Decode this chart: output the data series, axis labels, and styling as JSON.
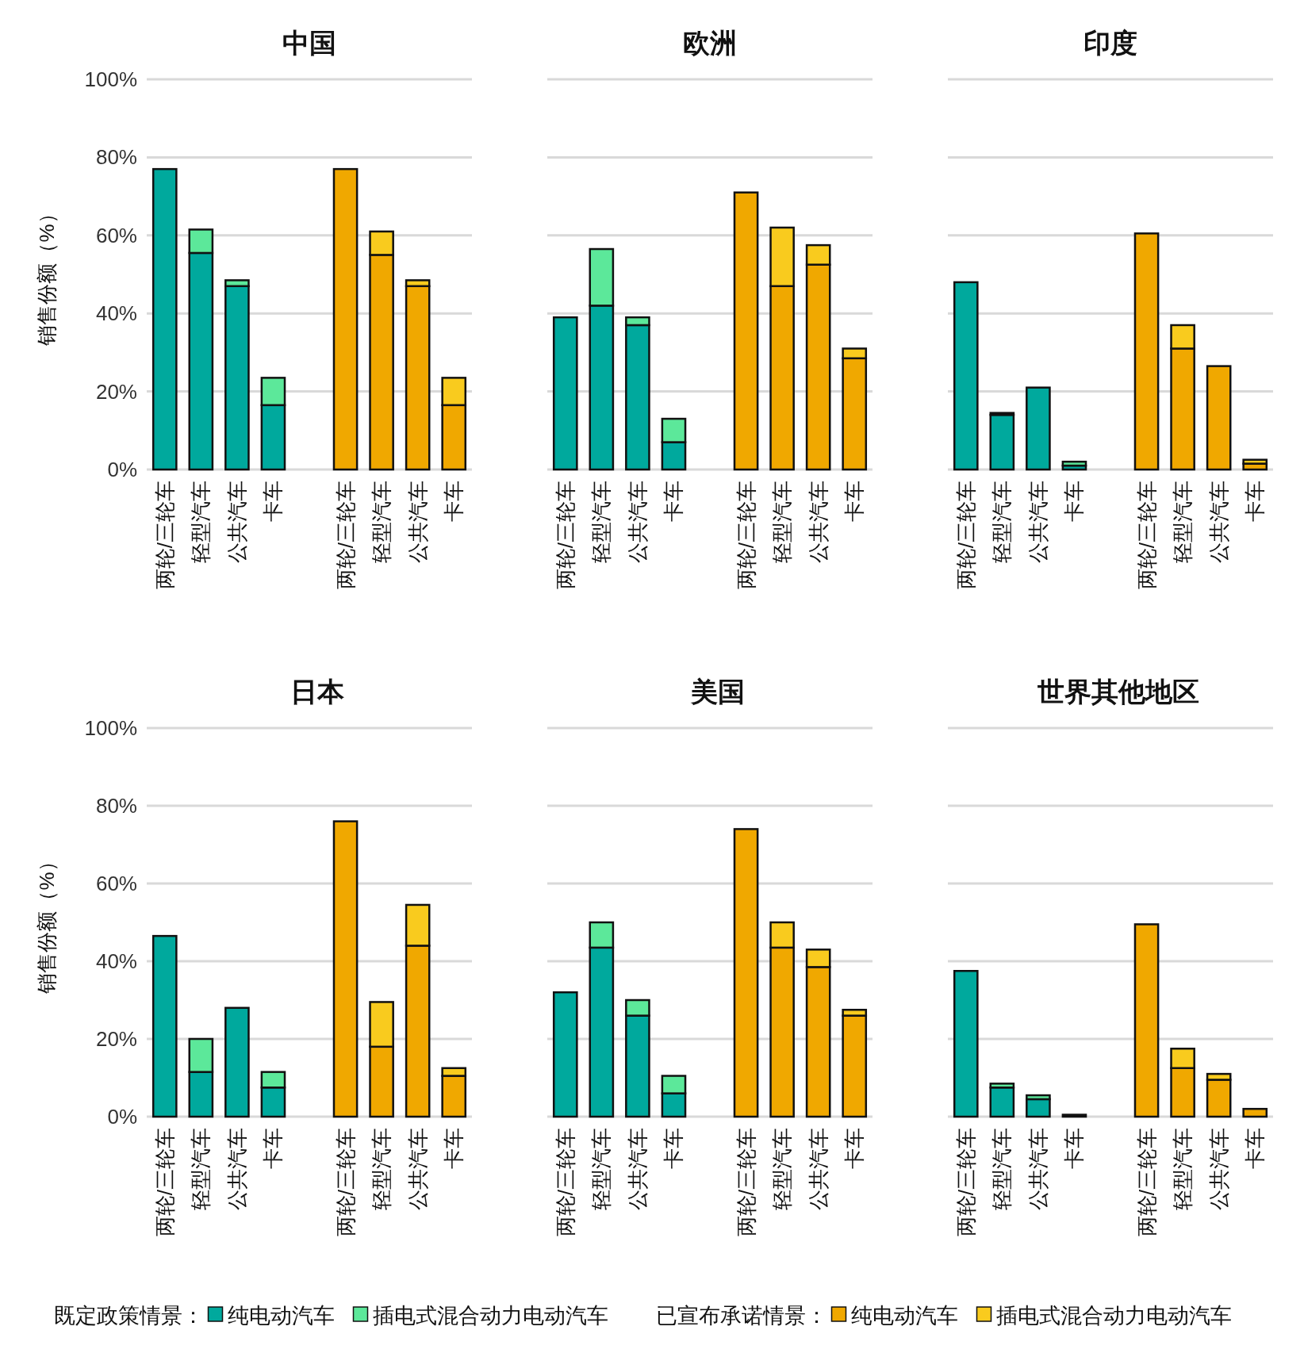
{
  "chart_data": [
    {
      "type": "bar",
      "stacked": true,
      "title": "中国",
      "ylabel": "销售份额（%）",
      "grid": "y",
      "ylim": [
        0,
        100
      ],
      "yticks": [
        {
          "value": 0,
          "label": "0%"
        },
        {
          "value": 20,
          "label": "20%"
        },
        {
          "value": 40,
          "label": "40%"
        },
        {
          "value": 60,
          "label": "60%"
        },
        {
          "value": 80,
          "label": "80%"
        },
        {
          "value": 100,
          "label": "100%"
        }
      ],
      "categories": [
        "两轮/三轮车",
        "轻型汽车",
        "公共汽车",
        "卡车",
        null,
        "两轮/三轮车",
        "轻型汽车",
        "公共汽车",
        "卡车"
      ],
      "series": [
        {
          "color": "#00a99d",
          "values": [
            77,
            55.5,
            47,
            16.5,
            null,
            null,
            null,
            null,
            null
          ]
        },
        {
          "color": "#5ce89a",
          "values": [
            null,
            6,
            1.5,
            7,
            null,
            null,
            null,
            null,
            null
          ]
        },
        {
          "color": "#f0a800",
          "values": [
            null,
            null,
            null,
            null,
            null,
            77,
            55,
            47,
            16.5
          ]
        },
        {
          "color": "#f9cb1e",
          "values": [
            null,
            null,
            null,
            null,
            null,
            null,
            6,
            1.5,
            7
          ]
        }
      ]
    },
    {
      "type": "bar",
      "stacked": true,
      "title": "欧洲",
      "grid": "y",
      "tick_labels": "x",
      "ylim": [
        0,
        100
      ],
      "yticks": [
        {
          "value": 0,
          "label": null
        },
        {
          "value": 20,
          "label": null
        },
        {
          "value": 40,
          "label": null
        },
        {
          "value": 60,
          "label": null
        },
        {
          "value": 80,
          "label": null
        },
        {
          "value": 100,
          "label": null
        }
      ],
      "categories": [
        "两轮/三轮车",
        "轻型汽车",
        "公共汽车",
        "卡车",
        null,
        "两轮/三轮车",
        "轻型汽车",
        "公共汽车",
        "卡车"
      ],
      "series": [
        {
          "color": "#00a99d",
          "values": [
            39,
            42,
            37,
            7,
            null,
            null,
            null,
            null,
            null
          ]
        },
        {
          "color": "#5ce89a",
          "values": [
            null,
            14.5,
            2,
            6,
            null,
            null,
            null,
            null,
            null
          ]
        },
        {
          "color": "#f0a800",
          "values": [
            null,
            null,
            null,
            null,
            null,
            71,
            47,
            52.5,
            28.5
          ]
        },
        {
          "color": "#f9cb1e",
          "values": [
            null,
            null,
            null,
            null,
            null,
            null,
            15,
            5,
            2.5
          ]
        }
      ]
    },
    {
      "type": "bar",
      "stacked": true,
      "title": "印度",
      "grid": "y",
      "tick_labels": "x",
      "ylim": [
        0,
        100
      ],
      "yticks": [
        {
          "value": 0,
          "label": null
        },
        {
          "value": 20,
          "label": null
        },
        {
          "value": 40,
          "label": null
        },
        {
          "value": 60,
          "label": null
        },
        {
          "value": 80,
          "label": null
        },
        {
          "value": 100,
          "label": null
        }
      ],
      "categories": [
        "两轮/三轮车",
        "轻型汽车",
        "公共汽车",
        "卡车",
        null,
        "两轮/三轮车",
        "轻型汽车",
        "公共汽车",
        "卡车"
      ],
      "series": [
        {
          "color": "#00a99d",
          "values": [
            48,
            14,
            21,
            1,
            null,
            null,
            null,
            null,
            null
          ]
        },
        {
          "color": "#5ce89a",
          "values": [
            null,
            0.5,
            null,
            1,
            null,
            null,
            null,
            null,
            null
          ]
        },
        {
          "color": "#f0a800",
          "values": [
            null,
            null,
            null,
            null,
            null,
            60.5,
            31,
            26.5,
            1.5
          ]
        },
        {
          "color": "#f9cb1e",
          "values": [
            null,
            null,
            null,
            null,
            null,
            null,
            6,
            null,
            1
          ]
        }
      ]
    },
    {
      "type": "bar",
      "stacked": true,
      "title": "日本",
      "ylabel": "销售份额（%）",
      "grid": "y",
      "ylim": [
        0,
        100
      ],
      "yticks": [
        {
          "value": 0,
          "label": "0%"
        },
        {
          "value": 20,
          "label": "20%"
        },
        {
          "value": 40,
          "label": "40%"
        },
        {
          "value": 60,
          "label": "60%"
        },
        {
          "value": 80,
          "label": "80%"
        },
        {
          "value": 100,
          "label": "100%"
        }
      ],
      "categories": [
        "两轮/三轮车",
        "轻型汽车",
        "公共汽车",
        "卡车",
        null,
        "两轮/三轮车",
        "轻型汽车",
        "公共汽车",
        "卡车"
      ],
      "series": [
        {
          "color": "#00a99d",
          "values": [
            46.5,
            11.5,
            28,
            7.5,
            null,
            null,
            null,
            null,
            null
          ]
        },
        {
          "color": "#5ce89a",
          "values": [
            null,
            8.5,
            null,
            4,
            null,
            null,
            null,
            null,
            null
          ]
        },
        {
          "color": "#f0a800",
          "values": [
            null,
            null,
            null,
            null,
            null,
            76,
            18,
            44,
            10.5
          ]
        },
        {
          "color": "#f9cb1e",
          "values": [
            null,
            null,
            null,
            null,
            null,
            null,
            11.5,
            10.5,
            2
          ]
        }
      ]
    },
    {
      "type": "bar",
      "stacked": true,
      "title": "美国",
      "grid": "y",
      "tick_labels": "x",
      "legend": "bottom",
      "annotations": [
        "既定政策情景：",
        "已宣布承诺情景："
      ],
      "ylim": [
        0,
        100
      ],
      "yticks": [
        {
          "value": 0,
          "label": null
        },
        {
          "value": 20,
          "label": null
        },
        {
          "value": 40,
          "label": null
        },
        {
          "value": 60,
          "label": null
        },
        {
          "value": 80,
          "label": null
        },
        {
          "value": 100,
          "label": null
        }
      ],
      "categories": [
        "两轮/三轮车",
        "轻型汽车",
        "公共汽车",
        "卡车",
        null,
        "两轮/三轮车",
        "轻型汽车",
        "公共汽车",
        "卡车"
      ],
      "series": [
        {
          "name": "纯电动汽车",
          "color": "#00a99d",
          "values": [
            32,
            43.5,
            26,
            6,
            null,
            null,
            null,
            null,
            null
          ]
        },
        {
          "name": "插电式混合动力电动汽车",
          "color": "#5ce89a",
          "values": [
            null,
            6.5,
            4,
            4.5,
            null,
            null,
            null,
            null,
            null
          ]
        },
        {
          "name": "纯电动汽车",
          "color": "#f0a800",
          "values": [
            null,
            null,
            null,
            null,
            null,
            74,
            43.5,
            38.5,
            26
          ]
        },
        {
          "name": "插电式混合动力电动汽车",
          "color": "#f9cb1e",
          "values": [
            null,
            null,
            null,
            null,
            null,
            null,
            6.5,
            4.5,
            1.5
          ]
        }
      ]
    },
    {
      "type": "bar",
      "stacked": true,
      "title": "世界其他地区",
      "grid": "y",
      "tick_labels": "x",
      "ylim": [
        0,
        100
      ],
      "yticks": [
        {
          "value": 0,
          "label": null
        },
        {
          "value": 20,
          "label": null
        },
        {
          "value": 40,
          "label": null
        },
        {
          "value": 60,
          "label": null
        },
        {
          "value": 80,
          "label": null
        },
        {
          "value": 100,
          "label": null
        }
      ],
      "categories": [
        "两轮/三轮车",
        "轻型汽车",
        "公共汽车",
        "卡车",
        null,
        "两轮/三轮车",
        "轻型汽车",
        "公共汽车",
        "卡车"
      ],
      "series": [
        {
          "color": "#00a99d",
          "values": [
            37.5,
            7.5,
            4.5,
            0.5,
            null,
            null,
            null,
            null,
            null
          ]
        },
        {
          "color": "#5ce89a",
          "values": [
            null,
            1,
            1,
            null,
            null,
            null,
            null,
            null,
            null
          ]
        },
        {
          "color": "#f0a800",
          "values": [
            null,
            null,
            null,
            null,
            null,
            49.5,
            12.5,
            9.5,
            2
          ]
        },
        {
          "color": "#f9cb1e",
          "values": [
            null,
            null,
            null,
            null,
            null,
            null,
            5,
            1.5,
            null
          ]
        }
      ]
    }
  ]
}
